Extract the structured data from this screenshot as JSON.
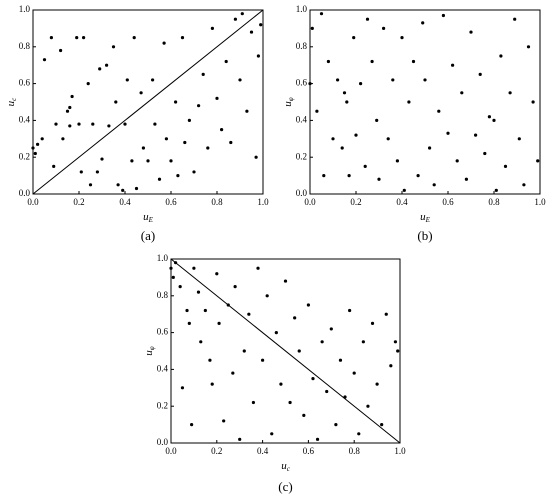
{
  "chart_data": [
    {
      "type": "scatter",
      "caption": "(a)",
      "x_label": {
        "text": "u",
        "subscript": "E"
      },
      "y_label": {
        "text": "u",
        "subscript": "c"
      },
      "color": "#000000",
      "diagonal": "rising",
      "xlim": [
        0,
        1
      ],
      "ylim": [
        0,
        1
      ],
      "xticks": [
        {
          "value": 0,
          "label": "0.0"
        },
        {
          "value": 0.2,
          "label": "0.2"
        },
        {
          "value": 0.4,
          "label": "0.4"
        },
        {
          "value": 0.6,
          "label": "0.6"
        },
        {
          "value": 0.8,
          "label": "0.8"
        },
        {
          "value": 1,
          "label": "1.0"
        }
      ],
      "yticks": [
        {
          "value": 0,
          "label": "0.0"
        },
        {
          "value": 0.2,
          "label": "0.2"
        },
        {
          "value": 0.4,
          "label": "0.4"
        },
        {
          "value": 0.6,
          "label": "0.6"
        },
        {
          "value": 0.8,
          "label": "0.8"
        },
        {
          "value": 1,
          "label": "1.0"
        }
      ],
      "x": [
        0.0,
        0.02,
        0.01,
        0.04,
        0.05,
        0.08,
        0.1,
        0.09,
        0.12,
        0.13,
        0.15,
        0.16,
        0.16,
        0.17,
        0.19,
        0.2,
        0.21,
        0.22,
        0.24,
        0.25,
        0.26,
        0.28,
        0.29,
        0.3,
        0.32,
        0.33,
        0.35,
        0.36,
        0.37,
        0.39,
        0.4,
        0.41,
        0.43,
        0.44,
        0.45,
        0.47,
        0.48,
        0.5,
        0.52,
        0.53,
        0.55,
        0.57,
        0.58,
        0.6,
        0.62,
        0.63,
        0.65,
        0.66,
        0.68,
        0.7,
        0.72,
        0.74,
        0.76,
        0.78,
        0.8,
        0.82,
        0.84,
        0.86,
        0.88,
        0.9,
        0.91,
        0.93,
        0.95,
        0.97,
        0.98,
        0.99
      ],
      "y": [
        0.25,
        0.27,
        0.22,
        0.3,
        0.73,
        0.85,
        0.38,
        0.15,
        0.78,
        0.3,
        0.45,
        0.47,
        0.37,
        0.53,
        0.85,
        0.38,
        0.12,
        0.85,
        0.6,
        0.05,
        0.38,
        0.12,
        0.68,
        0.19,
        0.7,
        0.37,
        0.8,
        0.5,
        0.05,
        0.02,
        0.38,
        0.62,
        0.18,
        0.85,
        0.03,
        0.55,
        0.25,
        0.18,
        0.62,
        0.38,
        0.08,
        0.82,
        0.3,
        0.18,
        0.5,
        0.1,
        0.85,
        0.28,
        0.4,
        0.12,
        0.48,
        0.65,
        0.25,
        0.9,
        0.52,
        0.35,
        0.72,
        0.28,
        0.95,
        0.62,
        0.98,
        0.45,
        0.88,
        0.2,
        0.75,
        0.92
      ]
    },
    {
      "type": "scatter",
      "caption": "(b)",
      "x_label": {
        "text": "u",
        "subscript": "E"
      },
      "y_label": {
        "text": "u",
        "subscript": "φ"
      },
      "color": "#000000",
      "xlim": [
        0,
        1
      ],
      "ylim": [
        0,
        1
      ],
      "xticks": [
        {
          "value": 0,
          "label": "0.0"
        },
        {
          "value": 0.2,
          "label": "0.2"
        },
        {
          "value": 0.4,
          "label": "0.4"
        },
        {
          "value": 0.6,
          "label": "0.6"
        },
        {
          "value": 0.8,
          "label": "0.8"
        },
        {
          "value": 1,
          "label": "1.0"
        }
      ],
      "yticks": [
        {
          "value": 0,
          "label": "0.0"
        },
        {
          "value": 0.2,
          "label": "0.2"
        },
        {
          "value": 0.4,
          "label": "0.4"
        },
        {
          "value": 0.6,
          "label": "0.6"
        },
        {
          "value": 0.8,
          "label": "0.8"
        },
        {
          "value": 1,
          "label": "1.0"
        }
      ],
      "x": [
        0.0,
        0.01,
        0.03,
        0.05,
        0.06,
        0.08,
        0.1,
        0.12,
        0.14,
        0.15,
        0.16,
        0.17,
        0.19,
        0.2,
        0.22,
        0.24,
        0.25,
        0.27,
        0.29,
        0.3,
        0.32,
        0.34,
        0.36,
        0.38,
        0.4,
        0.41,
        0.43,
        0.45,
        0.47,
        0.49,
        0.5,
        0.52,
        0.54,
        0.56,
        0.58,
        0.6,
        0.62,
        0.64,
        0.66,
        0.68,
        0.7,
        0.72,
        0.74,
        0.76,
        0.78,
        0.8,
        0.81,
        0.83,
        0.85,
        0.87,
        0.89,
        0.91,
        0.93,
        0.95,
        0.97,
        0.99
      ],
      "y": [
        0.6,
        0.9,
        0.45,
        0.98,
        0.1,
        0.72,
        0.3,
        0.62,
        0.25,
        0.55,
        0.5,
        0.1,
        0.85,
        0.32,
        0.6,
        0.15,
        0.95,
        0.72,
        0.4,
        0.08,
        0.9,
        0.3,
        0.62,
        0.18,
        0.85,
        0.02,
        0.5,
        0.72,
        0.1,
        0.93,
        0.62,
        0.25,
        0.05,
        0.45,
        0.97,
        0.33,
        0.7,
        0.18,
        0.55,
        0.08,
        0.88,
        0.32,
        0.65,
        0.22,
        0.42,
        0.4,
        0.02,
        0.75,
        0.15,
        0.55,
        0.95,
        0.3,
        0.05,
        0.8,
        0.5,
        0.18
      ]
    },
    {
      "type": "scatter",
      "caption": "(c)",
      "x_label": {
        "text": "u",
        "subscript": "c"
      },
      "y_label": {
        "text": "u",
        "subscript": "φ"
      },
      "color": "#000000",
      "diagonal": "falling",
      "xlim": [
        0,
        1
      ],
      "ylim": [
        0,
        1
      ],
      "xticks": [
        {
          "value": 0,
          "label": "0.0"
        },
        {
          "value": 0.2,
          "label": "0.2"
        },
        {
          "value": 0.4,
          "label": "0.4"
        },
        {
          "value": 0.6,
          "label": "0.6"
        },
        {
          "value": 0.8,
          "label": "0.8"
        },
        {
          "value": 1,
          "label": "1.0"
        }
      ],
      "yticks": [
        {
          "value": 0,
          "label": "0.0"
        },
        {
          "value": 0.2,
          "label": "0.2"
        },
        {
          "value": 0.4,
          "label": "0.4"
        },
        {
          "value": 0.6,
          "label": "0.6"
        },
        {
          "value": 0.8,
          "label": "0.8"
        },
        {
          "value": 1,
          "label": "1.0"
        }
      ],
      "x": [
        0.0,
        0.01,
        0.02,
        0.04,
        0.05,
        0.07,
        0.08,
        0.09,
        0.1,
        0.12,
        0.13,
        0.15,
        0.17,
        0.18,
        0.2,
        0.21,
        0.23,
        0.25,
        0.27,
        0.28,
        0.3,
        0.32,
        0.34,
        0.36,
        0.38,
        0.4,
        0.42,
        0.44,
        0.46,
        0.48,
        0.5,
        0.52,
        0.54,
        0.56,
        0.58,
        0.6,
        0.62,
        0.64,
        0.66,
        0.68,
        0.7,
        0.72,
        0.74,
        0.76,
        0.78,
        0.8,
        0.82,
        0.84,
        0.86,
        0.88,
        0.9,
        0.92,
        0.94,
        0.96,
        0.98,
        0.99
      ],
      "y": [
        0.95,
        0.9,
        0.98,
        0.85,
        0.3,
        0.72,
        0.65,
        0.1,
        0.95,
        0.82,
        0.55,
        0.72,
        0.45,
        0.32,
        0.92,
        0.65,
        0.12,
        0.75,
        0.38,
        0.85,
        0.02,
        0.5,
        0.7,
        0.22,
        0.95,
        0.45,
        0.8,
        0.05,
        0.6,
        0.32,
        0.88,
        0.22,
        0.68,
        0.5,
        0.15,
        0.75,
        0.35,
        0.02,
        0.55,
        0.28,
        0.62,
        0.1,
        0.45,
        0.25,
        0.72,
        0.38,
        0.05,
        0.55,
        0.2,
        0.65,
        0.32,
        0.1,
        0.7,
        0.42,
        0.55,
        0.5
      ]
    }
  ]
}
